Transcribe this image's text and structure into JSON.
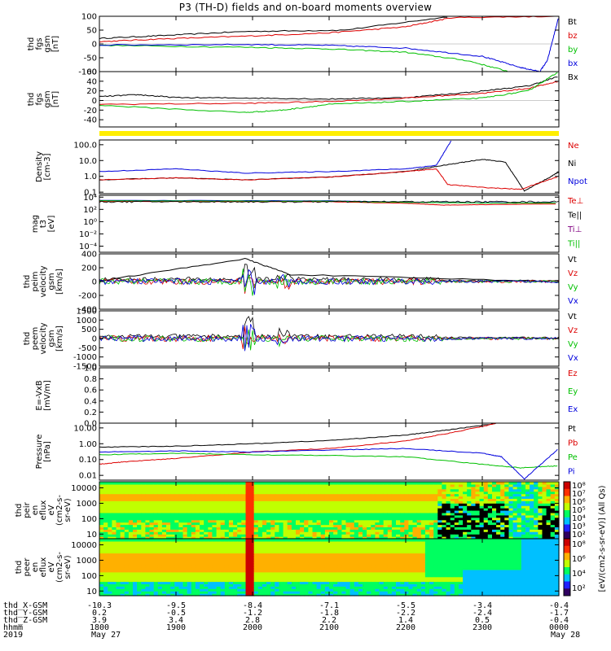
{
  "title": "P3 (TH-D) fields and on-board moments overview",
  "chart_data": {
    "type": "line",
    "time_axis": {
      "hhmm": [
        "1800",
        "1900",
        "2000",
        "2100",
        "2200",
        "2300",
        "0000"
      ],
      "dates": [
        "May 27",
        "May 28"
      ],
      "year": "2019"
    },
    "ephemeris": {
      "labels": [
        "thd_X-GSM",
        "thd_Y-GSM",
        "thd_Z-GSM",
        "hhmm",
        "2019"
      ],
      "rows": [
        [
          "-10.3",
          "-9.5",
          "-8.4",
          "-7.1",
          "-5.5",
          "-3.4",
          "-0.4"
        ],
        [
          "0.2",
          "-0.5",
          "-1.2",
          "-1.8",
          "-2.2",
          "-2.4",
          "-1.7"
        ],
        [
          "3.9",
          "3.4",
          "2.8",
          "2.2",
          "1.4",
          "0.5",
          "-0.4"
        ]
      ]
    },
    "panels": [
      {
        "id": "fgs_gsm",
        "ylabel": [
          "thd",
          "fgs",
          "gsm",
          "[nT]"
        ],
        "yticks": [
          "100",
          "50",
          "0",
          "-50",
          "-100"
        ],
        "ylim": [
          -100,
          100
        ],
        "scale": "linear",
        "legend": [
          "Bt",
          "bz",
          "by",
          "bx"
        ],
        "legend_colors": [
          "#000000",
          "#dd0000",
          "#00c000",
          "#0000dd"
        ],
        "series": [
          {
            "name": "Bt",
            "color": "#000000",
            "values": [
              [
                0,
                20
              ],
              [
                0.8,
                30
              ],
              [
                1.9,
                45
              ],
              [
                3.2,
                50
              ],
              [
                4.6,
                100
              ]
            ]
          },
          {
            "name": "bz",
            "color": "#dd0000",
            "values": [
              [
                0,
                8
              ],
              [
                0.8,
                18
              ],
              [
                1.9,
                28
              ],
              [
                3.0,
                40
              ],
              [
                4.0,
                62
              ],
              [
                4.6,
                95
              ],
              [
                6,
                100
              ]
            ]
          },
          {
            "name": "by",
            "color": "#00c000",
            "values": [
              [
                0,
                -5
              ],
              [
                1.9,
                -12
              ],
              [
                3,
                -18
              ],
              [
                4,
                -30
              ],
              [
                4.8,
                -60
              ],
              [
                5.35,
                -100
              ]
            ]
          },
          {
            "name": "bx",
            "color": "#0000dd",
            "values": [
              [
                0,
                -4
              ],
              [
                1.9,
                -2
              ],
              [
                3,
                -5
              ],
              [
                4,
                -15
              ],
              [
                5,
                -45
              ],
              [
                5.5,
                -85
              ],
              [
                5.75,
                -100
              ],
              [
                5.85,
                -60
              ],
              [
                6,
                100
              ]
            ]
          }
        ]
      },
      {
        "id": "fgs_gse",
        "ylabel": [
          "thd",
          "fgs",
          "gsm",
          "[nT]"
        ],
        "yticks": [
          "60",
          "40",
          "20",
          "0",
          "-20",
          "-40"
        ],
        "ylim": [
          -55,
          60
        ],
        "scale": "linear",
        "legend": [
          "Bx"
        ],
        "legend_colors": [
          "#000000"
        ],
        "series": [
          {
            "name": "Bx",
            "color": "#000000",
            "values": [
              [
                0,
                8
              ],
              [
                0.5,
                12
              ],
              [
                1,
                6
              ],
              [
                2,
                5
              ],
              [
                3,
                3
              ],
              [
                4,
                6
              ],
              [
                4.9,
                18
              ],
              [
                5.6,
                30
              ],
              [
                6,
                50
              ]
            ]
          },
          {
            "name": "",
            "color": "#dd0000",
            "values": [
              [
                0,
                -8
              ],
              [
                1.9,
                -6
              ],
              [
                3,
                -2
              ],
              [
                4,
                5
              ],
              [
                5,
                15
              ],
              [
                5.6,
                25
              ],
              [
                6,
                40
              ]
            ]
          },
          {
            "name": "",
            "color": "#00c000",
            "values": [
              [
                0,
                -10
              ],
              [
                1.9,
                -25
              ],
              [
                2.4,
                -20
              ],
              [
                3,
                -8
              ],
              [
                4,
                -2
              ],
              [
                5,
                5
              ],
              [
                5.6,
                20
              ],
              [
                6,
                60
              ]
            ]
          }
        ]
      },
      {
        "id": "density",
        "ylabel": [
          "Density",
          "[cm-3]"
        ],
        "yticks": [
          "100.0",
          "10.0",
          "1.0",
          "0.1"
        ],
        "ylim": [
          0.08,
          200
        ],
        "scale": "log",
        "legend": [
          "Ne",
          "Ni",
          "Npot"
        ],
        "legend_colors": [
          "#dd0000",
          "#000000",
          "#0000dd"
        ],
        "series": [
          {
            "name": "Ni",
            "color": "#000000",
            "values": [
              [
                0,
                0.6
              ],
              [
                1,
                0.8
              ],
              [
                1.9,
                0.6
              ],
              [
                3,
                0.9
              ],
              [
                4,
                2
              ],
              [
                4.5,
                5
              ],
              [
                5,
                12
              ],
              [
                5.3,
                8
              ],
              [
                5.55,
                0.12
              ],
              [
                5.9,
                1
              ],
              [
                6,
                2
              ]
            ]
          },
          {
            "name": "Ne",
            "color": "#dd0000",
            "values": [
              [
                0,
                0.6
              ],
              [
                1,
                0.8
              ],
              [
                1.9,
                0.6
              ],
              [
                3,
                0.9
              ],
              [
                4,
                2
              ],
              [
                4.4,
                3
              ],
              [
                4.55,
                0.3
              ],
              [
                5,
                0.2
              ],
              [
                5.5,
                0.15
              ],
              [
                6,
                1
              ]
            ]
          },
          {
            "name": "Npot",
            "color": "#0000dd",
            "values": [
              [
                0,
                2
              ],
              [
                1,
                3
              ],
              [
                1.9,
                1.6
              ],
              [
                3,
                2
              ],
              [
                4,
                3
              ],
              [
                4.4,
                5
              ],
              [
                4.6,
                200
              ]
            ]
          }
        ]
      },
      {
        "id": "temperature",
        "ylabel": [
          "mag",
          "t3",
          "[eV]"
        ],
        "yticks": [
          "10⁴",
          "10²",
          "10⁰",
          "10⁻²",
          "10⁻⁴"
        ],
        "ylim": [
          1e-05,
          20000
        ],
        "scale": "log",
        "legend": [
          "Te⊥",
          "Te||",
          "Ti⊥",
          "Ti||"
        ],
        "legend_colors": [
          "#dd0000",
          "#000000",
          "#800080",
          "#00c000"
        ],
        "series": [
          {
            "name": "Ti⊥",
            "color": "#0000dd",
            "values": [
              [
                0,
                3000
              ],
              [
                3,
                2500
              ],
              [
                4,
                1500
              ],
              [
                5,
                1200
              ],
              [
                6,
                1200
              ]
            ]
          },
          {
            "name": "Te⊥",
            "color": "#dd0000",
            "values": [
              [
                0,
                2000
              ],
              [
                3,
                1800
              ],
              [
                4,
                1000
              ],
              [
                4.5,
                500
              ],
              [
                5,
                600
              ],
              [
                6,
                800
              ]
            ]
          },
          {
            "name": "Ti||",
            "color": "#00c000",
            "values": [
              [
                0,
                2500
              ],
              [
                3,
                2200
              ],
              [
                4,
                1400
              ],
              [
                5,
                1100
              ],
              [
                6,
                1100
              ]
            ]
          }
        ]
      },
      {
        "id": "peim_velocity",
        "ylabel": [
          "thd",
          "peim",
          "velocity",
          "gsm",
          "[km/s]"
        ],
        "yticks": [
          "400",
          "200",
          "0",
          "-200",
          "-400"
        ],
        "ylim": [
          -400,
          400
        ],
        "scale": "linear",
        "legend": [
          "Vt",
          "Vz",
          "Vy",
          "Vx"
        ],
        "legend_colors": [
          "#000000",
          "#dd0000",
          "#00c000",
          "#0000dd"
        ],
        "series": [
          {
            "name": "Vt",
            "color": "#000000",
            "values": [
              [
                0,
                10
              ],
              [
                1.9,
                330
              ],
              [
                2.5,
                100
              ],
              [
                6,
                0
              ]
            ]
          }
        ]
      },
      {
        "id": "peem_velocity",
        "ylabel": [
          "thd",
          "peem",
          "velocity",
          "gsm",
          "[km/s]"
        ],
        "yticks": [
          "1500",
          "1000",
          "500",
          "0",
          "-500",
          "-1000",
          "-1500"
        ],
        "ylim": [
          -1500,
          1500
        ],
        "scale": "linear",
        "legend": [
          "Vt",
          "Vz",
          "Vy",
          "Vx"
        ],
        "legend_colors": [
          "#000000",
          "#dd0000",
          "#00c000",
          "#0000dd"
        ],
        "series": []
      },
      {
        "id": "efield",
        "ylabel": [
          "E=-VxB",
          "[mV/m]"
        ],
        "yticks": [
          "1.0",
          "0.8",
          "0.6",
          "0.4",
          "0.2",
          "0.0"
        ],
        "ylim": [
          0,
          1
        ],
        "scale": "linear",
        "legend": [
          "Ez",
          "Ey",
          "Ex"
        ],
        "legend_colors": [
          "#dd0000",
          "#00c000",
          "#0000dd"
        ],
        "series": []
      },
      {
        "id": "pressure",
        "ylabel": [
          "Pressure",
          "[nPa]"
        ],
        "yticks": [
          "10.00",
          "1.00",
          "0.10",
          "0.01"
        ],
        "ylim": [
          0.005,
          20
        ],
        "scale": "log",
        "legend": [
          "Pt",
          "Pb",
          "Pe",
          "Pi"
        ],
        "legend_colors": [
          "#000000",
          "#dd0000",
          "#00c000",
          "#0000dd"
        ],
        "series": [
          {
            "name": "Pt",
            "color": "#000000",
            "values": [
              [
                0,
                0.6
              ],
              [
                1,
                0.7
              ],
              [
                2,
                1
              ],
              [
                3,
                1.6
              ],
              [
                4,
                3.5
              ],
              [
                4.6,
                8
              ],
              [
                5.2,
                20
              ]
            ]
          },
          {
            "name": "Pb",
            "color": "#dd0000",
            "values": [
              [
                0,
                0.05
              ],
              [
                0.3,
                0.07
              ],
              [
                1,
                0.12
              ],
              [
                2,
                0.3
              ],
              [
                3,
                0.5
              ],
              [
                4,
                1.5
              ],
              [
                4.6,
                5
              ],
              [
                5.2,
                20
              ]
            ]
          },
          {
            "name": "Pe",
            "color": "#00c000",
            "values": [
              [
                0,
                0.2
              ],
              [
                1,
                0.25
              ],
              [
                2,
                0.2
              ],
              [
                3,
                0.18
              ],
              [
                4,
                0.15
              ],
              [
                5,
                0.05
              ],
              [
                5.5,
                0.03
              ],
              [
                6,
                0.04
              ]
            ]
          },
          {
            "name": "Pi",
            "color": "#0000dd",
            "values": [
              [
                0,
                0.3
              ],
              [
                1,
                0.35
              ],
              [
                2,
                0.3
              ],
              [
                3,
                0.4
              ],
              [
                4,
                0.5
              ],
              [
                5,
                0.25
              ],
              [
                5.25,
                0.15
              ],
              [
                5.55,
                0.006
              ],
              [
                6,
                0.5
              ]
            ]
          }
        ]
      },
      {
        "id": "peir_spec",
        "ylabel": [
          "thd",
          "peir",
          "en",
          "eflux",
          "eV",
          "(cm2-s-",
          "sr-eV)"
        ],
        "yticks": [
          "10000",
          "1000",
          "100",
          "10"
        ],
        "ylim": [
          5,
          25000
        ],
        "scale": "log",
        "kind": "spectrogram"
      },
      {
        "id": "peer_spec",
        "ylabel": [
          "thd",
          "peer",
          "en",
          "eflux",
          "eV",
          "(cm2-s-",
          "sr-eV)"
        ],
        "yticks": [
          "10000",
          "1000",
          "100",
          "10"
        ],
        "ylim": [
          5,
          25000
        ],
        "scale": "log",
        "kind": "spectrogram"
      }
    ],
    "colorbar": {
      "label": "[eV/(cm2-s-sr-eV)] (All Qs)",
      "ticks_top": [
        "10⁸",
        "10⁷",
        "10⁶",
        "10⁵",
        "10⁴",
        "10³",
        "10²"
      ],
      "ticks_bottom": [
        "10⁸",
        "10⁶",
        "10⁴",
        "10²"
      ]
    }
  }
}
